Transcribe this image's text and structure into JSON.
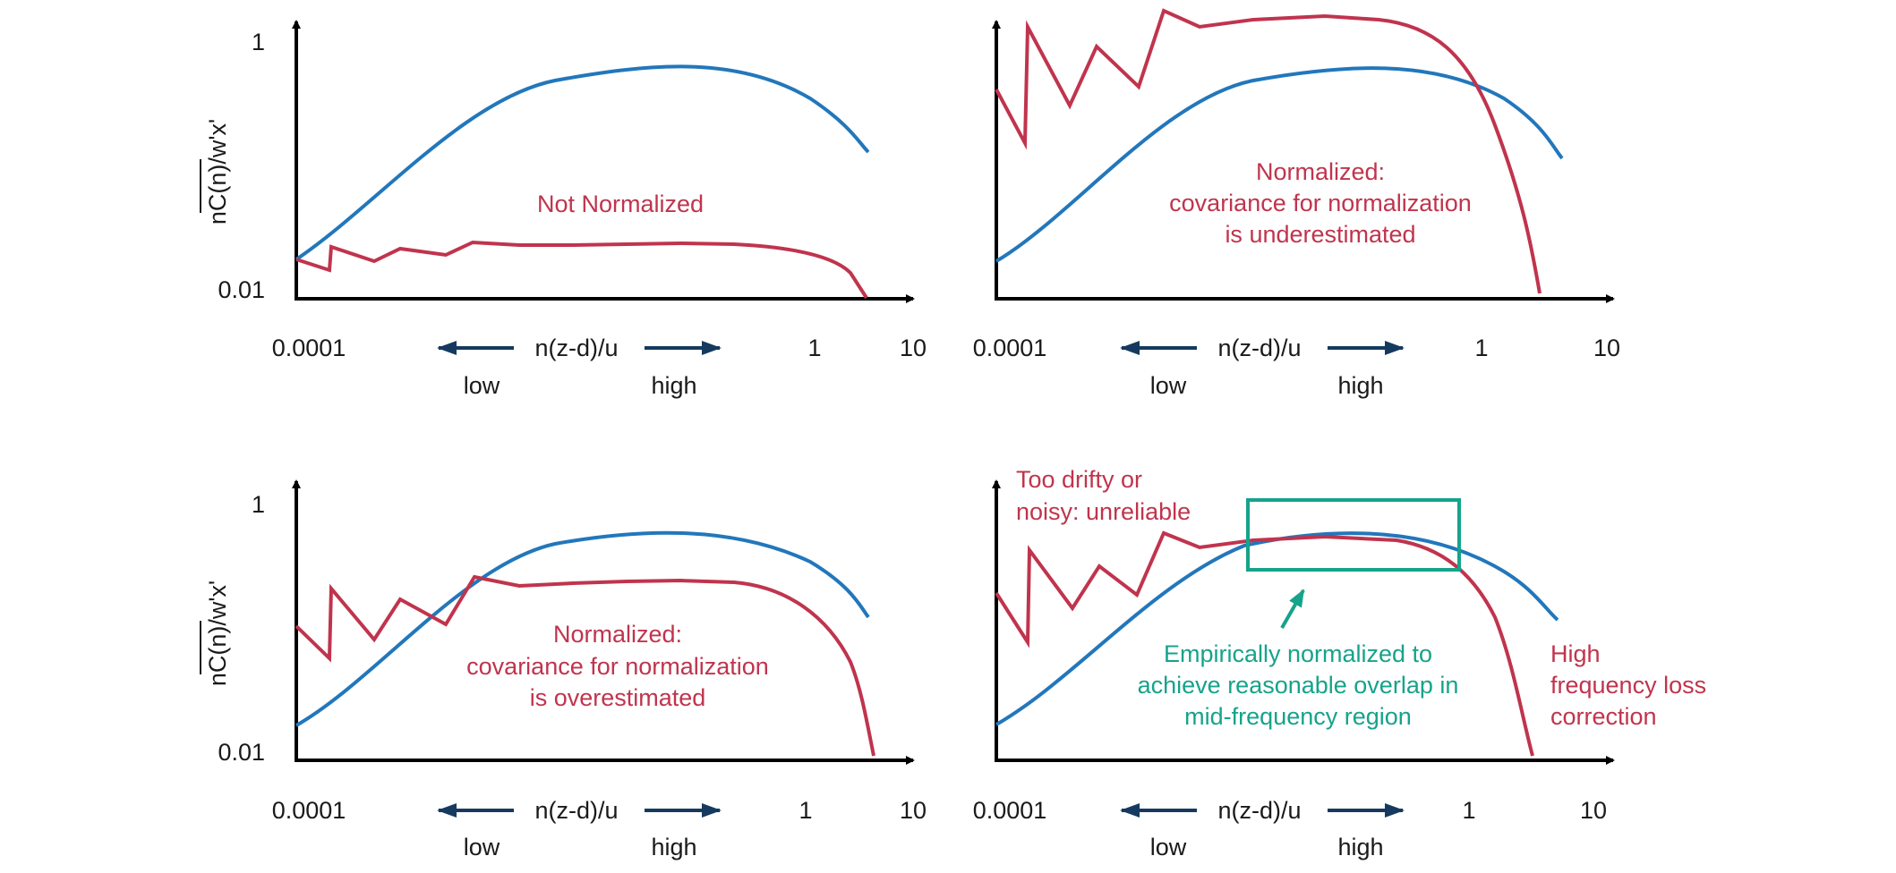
{
  "colors": {
    "blue_curve": "#2277bb",
    "red_curve": "#c0344d",
    "teal_box": "#16a38b",
    "axis": "#000000",
    "direction_arrow": "#163a5f"
  },
  "panels": [
    {
      "id": "top-left",
      "y_axis_label": "nC(n)/w'x'",
      "y_ticks": {
        "top": "1",
        "bottom": "0.01"
      },
      "x_ticks": {
        "left": "0.0001",
        "one": "1",
        "ten": "10"
      },
      "x_axis_label": "n(z-d)/u",
      "low_label": "low",
      "high_label": "high",
      "annotations": [
        "Not Normalized"
      ]
    },
    {
      "id": "top-right",
      "y_axis_label": "",
      "x_ticks": {
        "left": "0.0001",
        "one": "1",
        "ten": "10"
      },
      "x_axis_label": "n(z-d)/u",
      "low_label": "low",
      "high_label": "high",
      "annotations": [
        "Normalized:",
        "covariance for normalization",
        "is underestimated"
      ]
    },
    {
      "id": "bottom-left",
      "y_axis_label": "nC(n)/w'x'",
      "y_ticks": {
        "top": "1",
        "bottom": "0.01"
      },
      "x_ticks": {
        "left": "0.0001",
        "one": "1",
        "ten": "10"
      },
      "x_axis_label": "n(z-d)/u",
      "low_label": "low",
      "high_label": "high",
      "annotations": [
        "Normalized:",
        "covariance for normalization",
        "is overestimated"
      ]
    },
    {
      "id": "bottom-right",
      "y_axis_label": "",
      "x_ticks": {
        "left": "0.0001",
        "one": "1",
        "ten": "10"
      },
      "x_axis_label": "n(z-d)/u",
      "low_label": "low",
      "high_label": "high",
      "annotations_red_left": [
        "Too drifty or",
        "noisy: unreliable"
      ],
      "annotations_teal": [
        "Empirically normalized to",
        "achieve reasonable overlap in",
        "mid-frequency region"
      ],
      "annotations_red_right": [
        "High",
        "frequency loss",
        "correction"
      ]
    }
  ]
}
